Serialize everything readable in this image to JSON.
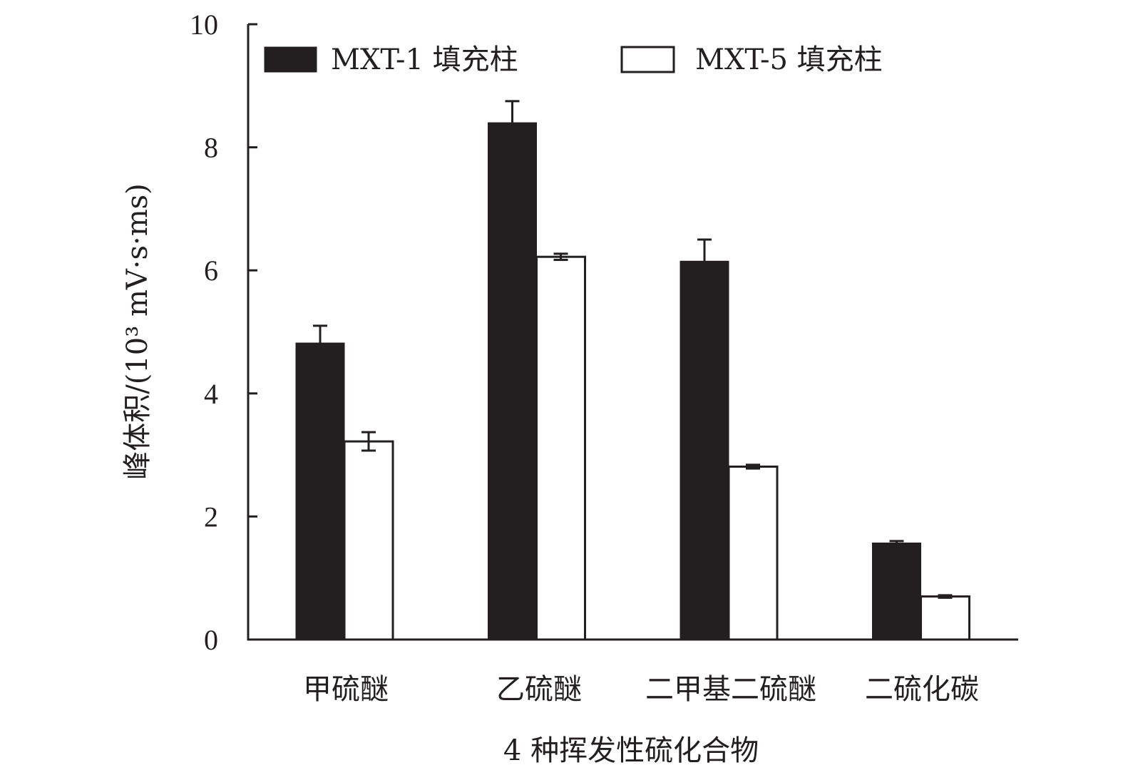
{
  "chart_data": {
    "type": "bar",
    "title": "",
    "xlabel": "4 种挥发性硫化合物",
    "ylabel": "峰体积/(10³ mV·s·ms)",
    "ylim": [
      0,
      10
    ],
    "yticks": [
      0,
      2,
      4,
      6,
      8,
      10
    ],
    "grid": false,
    "legend_position": "top",
    "categories": [
      "甲硫醚",
      "乙硫醚",
      "二甲基二硫醚",
      "二硫化碳"
    ],
    "series": [
      {
        "name": "MXT-1 填充柱",
        "fill": "#231f20",
        "values": [
          4.82,
          8.4,
          6.15,
          1.57
        ],
        "errors": [
          0.28,
          0.35,
          0.35,
          0.03
        ]
      },
      {
        "name": "MXT-5 填充柱",
        "fill": "#ffffff",
        "values": [
          3.22,
          6.22,
          2.81,
          0.7
        ],
        "errors": [
          0.15,
          0.05,
          0.03,
          0.02
        ]
      }
    ]
  }
}
